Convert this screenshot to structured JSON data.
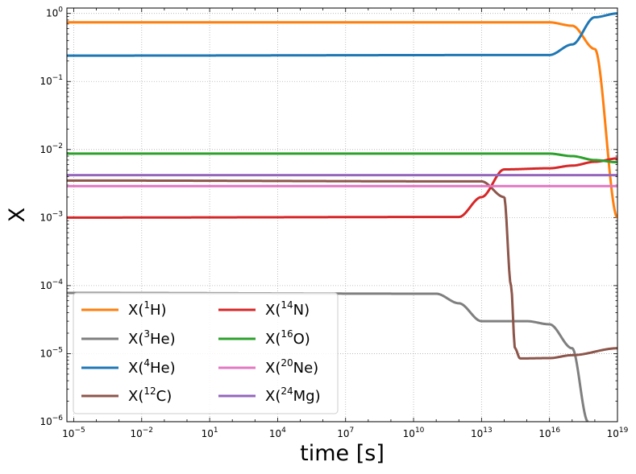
{
  "chart_data": {
    "type": "line",
    "title": "",
    "xlabel": "time [s]",
    "ylabel": "X",
    "xscale": "log",
    "yscale": "log",
    "xlim": [
      5e-06,
      1e+19
    ],
    "ylim": [
      1e-06,
      1.2
    ],
    "grid": "on (dotted, major ticks)",
    "legend": {
      "placement": "lower-left",
      "columns": 2
    },
    "x_ticks": [
      {
        "value": 1e-05,
        "base": "10",
        "exp": "−5"
      },
      {
        "value": 0.01,
        "base": "10",
        "exp": "−2"
      },
      {
        "value": 10.0,
        "base": "10",
        "exp": "1"
      },
      {
        "value": 10000.0,
        "base": "10",
        "exp": "4"
      },
      {
        "value": 10000000.0,
        "base": "10",
        "exp": "7"
      },
      {
        "value": 10000000000.0,
        "base": "10",
        "exp": "10"
      },
      {
        "value": 10000000000000.0,
        "base": "10",
        "exp": "13"
      },
      {
        "value": 1e+16,
        "base": "10",
        "exp": "16"
      },
      {
        "value": 1e+19,
        "base": "10",
        "exp": "19"
      }
    ],
    "y_ticks": [
      {
        "value": 1e-06,
        "base": "10",
        "exp": "−6"
      },
      {
        "value": 1e-05,
        "base": "10",
        "exp": "−5"
      },
      {
        "value": 0.0001,
        "base": "10",
        "exp": "−4"
      },
      {
        "value": 0.001,
        "base": "10",
        "exp": "−3"
      },
      {
        "value": 0.01,
        "base": "10",
        "exp": "−2"
      },
      {
        "value": 0.1,
        "base": "10",
        "exp": "−1"
      },
      {
        "value": 1,
        "base": "10",
        "exp": "0"
      }
    ],
    "series": [
      {
        "name": "X(1H)",
        "label_pre": "X(",
        "label_sup": "1",
        "label_post": "H)",
        "color": "#ff7f0e",
        "points": [
          [
            1e-05,
            0.74
          ],
          [
            1e+16,
            0.74
          ],
          [
            1e+17,
            0.66
          ],
          [
            1e+18,
            0.3
          ],
          [
            1e+19,
            0.001
          ]
        ]
      },
      {
        "name": "X(3He)",
        "label_pre": "X(",
        "label_sup": "3",
        "label_post": "He)",
        "color": "#7f7f7f",
        "points": [
          [
            1e-05,
            7.8e-05
          ],
          [
            100000000000.0,
            7.6e-05
          ],
          [
            1000000000000.0,
            5.5e-05
          ],
          [
            10000000000000.0,
            3e-05
          ],
          [
            1000000000000000.0,
            3e-05
          ],
          [
            1e+16,
            2.7e-05
          ],
          [
            1e+17,
            1.2e-05
          ],
          [
            5e+17,
            1e-06
          ]
        ]
      },
      {
        "name": "X(4He)",
        "label_pre": "X(",
        "label_sup": "4",
        "label_post": "He)",
        "color": "#1f77b4",
        "points": [
          [
            1e-05,
            0.24
          ],
          [
            1e+16,
            0.245
          ],
          [
            1e+17,
            0.35
          ],
          [
            1e+18,
            0.88
          ],
          [
            1e+19,
            1.0
          ]
        ]
      },
      {
        "name": "X(12C)",
        "label_pre": "X(",
        "label_sup": "12",
        "label_post": "C)",
        "color": "#8c564b",
        "points": [
          [
            1e-05,
            0.0035
          ],
          [
            10000000000000.0,
            0.0034
          ],
          [
            100000000000000.0,
            0.002
          ],
          [
            200000000000000.0,
            0.0001
          ],
          [
            300000000000000.0,
            1.2e-05
          ],
          [
            500000000000000.0,
            8.5e-06
          ],
          [
            1e+16,
            8.6e-06
          ],
          [
            1e+17,
            9.5e-06
          ],
          [
            1e+19,
            1.2e-05
          ]
        ]
      },
      {
        "name": "X(14N)",
        "label_pre": "X(",
        "label_sup": "14",
        "label_post": "N)",
        "color": "#d62728",
        "points": [
          [
            1e-05,
            0.001
          ],
          [
            1000000000000.0,
            0.00102
          ],
          [
            10000000000000.0,
            0.002
          ],
          [
            100000000000000.0,
            0.0051
          ],
          [
            1e+16,
            0.0053
          ],
          [
            1e+17,
            0.0058
          ],
          [
            1e+18,
            0.0066
          ],
          [
            1e+19,
            0.0074
          ]
        ]
      },
      {
        "name": "X(16O)",
        "label_pre": "X(",
        "label_sup": "16",
        "label_post": "O)",
        "color": "#2ca02c",
        "points": [
          [
            1e-05,
            0.0087
          ],
          [
            1e+16,
            0.0087
          ],
          [
            1e+17,
            0.008
          ],
          [
            1e+18,
            0.007
          ],
          [
            1e+19,
            0.0065
          ]
        ]
      },
      {
        "name": "X(20Ne)",
        "label_pre": "X(",
        "label_sup": "20",
        "label_post": "Ne)",
        "color": "#e377c2",
        "points": [
          [
            1e-05,
            0.0029
          ],
          [
            1e+19,
            0.0029
          ]
        ]
      },
      {
        "name": "X(24Mg)",
        "label_pre": "X(",
        "label_sup": "24",
        "label_post": "Mg)",
        "color": "#9467bd",
        "points": [
          [
            1e-05,
            0.0042
          ],
          [
            1e+19,
            0.0042
          ]
        ]
      }
    ],
    "legend_order": [
      0,
      1,
      2,
      3,
      4,
      5,
      6,
      7
    ]
  }
}
